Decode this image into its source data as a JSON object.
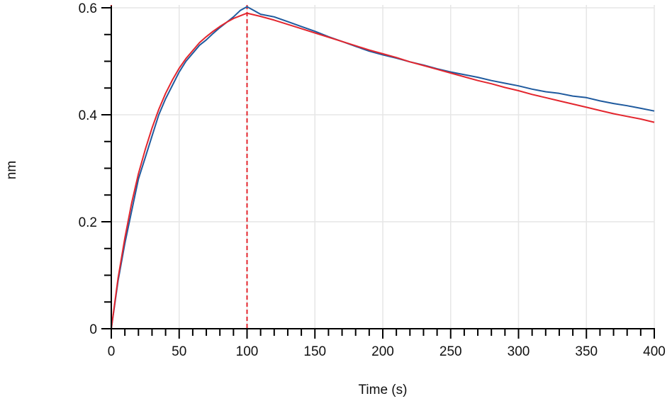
{
  "chart_data": {
    "type": "line",
    "xlabel": "Time (s)",
    "ylabel": "nm",
    "xlim": [
      0,
      400
    ],
    "ylim": [
      0,
      0.6
    ],
    "x_ticks": [
      0,
      50,
      100,
      150,
      200,
      250,
      300,
      350,
      400
    ],
    "x_tick_labels": [
      "0",
      "50",
      "100",
      "150",
      "200",
      "250",
      "300",
      "350",
      "400"
    ],
    "y_ticks": [
      0,
      0.2,
      0.4,
      0.6
    ],
    "y_tick_labels": [
      "0",
      "0.2",
      "0.4",
      "0.6"
    ],
    "grid": true,
    "marker_lines": [
      0,
      100
    ],
    "marker_color": "#e3262e",
    "series": [
      {
        "color": "#1f5a9e",
        "x": [
          0,
          5,
          10,
          15,
          20,
          25,
          30,
          35,
          40,
          45,
          50,
          55,
          60,
          65,
          70,
          75,
          80,
          85,
          90,
          95,
          100,
          105,
          110,
          120,
          130,
          140,
          150,
          160,
          170,
          180,
          190,
          200,
          210,
          220,
          230,
          240,
          250,
          260,
          270,
          280,
          290,
          300,
          310,
          320,
          330,
          340,
          350,
          360,
          370,
          380,
          390,
          400
        ],
        "y": [
          0.0,
          0.09,
          0.16,
          0.22,
          0.28,
          0.32,
          0.36,
          0.4,
          0.43,
          0.455,
          0.48,
          0.5,
          0.515,
          0.53,
          0.54,
          0.552,
          0.563,
          0.573,
          0.583,
          0.595,
          0.602,
          0.595,
          0.588,
          0.583,
          0.574,
          0.565,
          0.556,
          0.546,
          0.537,
          0.528,
          0.519,
          0.512,
          0.506,
          0.499,
          0.493,
          0.486,
          0.48,
          0.475,
          0.47,
          0.464,
          0.459,
          0.454,
          0.448,
          0.443,
          0.44,
          0.435,
          0.432,
          0.426,
          0.421,
          0.417,
          0.412,
          0.407
        ]
      },
      {
        "color": "#e3262e",
        "x": [
          0,
          5,
          10,
          15,
          20,
          25,
          30,
          35,
          40,
          45,
          50,
          55,
          60,
          65,
          70,
          75,
          80,
          85,
          90,
          95,
          100,
          110,
          120,
          130,
          140,
          150,
          160,
          170,
          180,
          190,
          200,
          210,
          220,
          230,
          240,
          250,
          260,
          270,
          280,
          290,
          300,
          310,
          320,
          330,
          340,
          350,
          360,
          370,
          380,
          390,
          400
        ],
        "y": [
          0.0,
          0.095,
          0.17,
          0.235,
          0.29,
          0.335,
          0.375,
          0.41,
          0.44,
          0.465,
          0.487,
          0.505,
          0.52,
          0.535,
          0.546,
          0.556,
          0.565,
          0.573,
          0.58,
          0.585,
          0.59,
          0.584,
          0.577,
          0.569,
          0.561,
          0.553,
          0.545,
          0.537,
          0.529,
          0.521,
          0.514,
          0.507,
          0.499,
          0.492,
          0.485,
          0.478,
          0.471,
          0.464,
          0.458,
          0.451,
          0.445,
          0.438,
          0.432,
          0.426,
          0.42,
          0.414,
          0.408,
          0.402,
          0.397,
          0.392,
          0.386
        ]
      }
    ]
  }
}
